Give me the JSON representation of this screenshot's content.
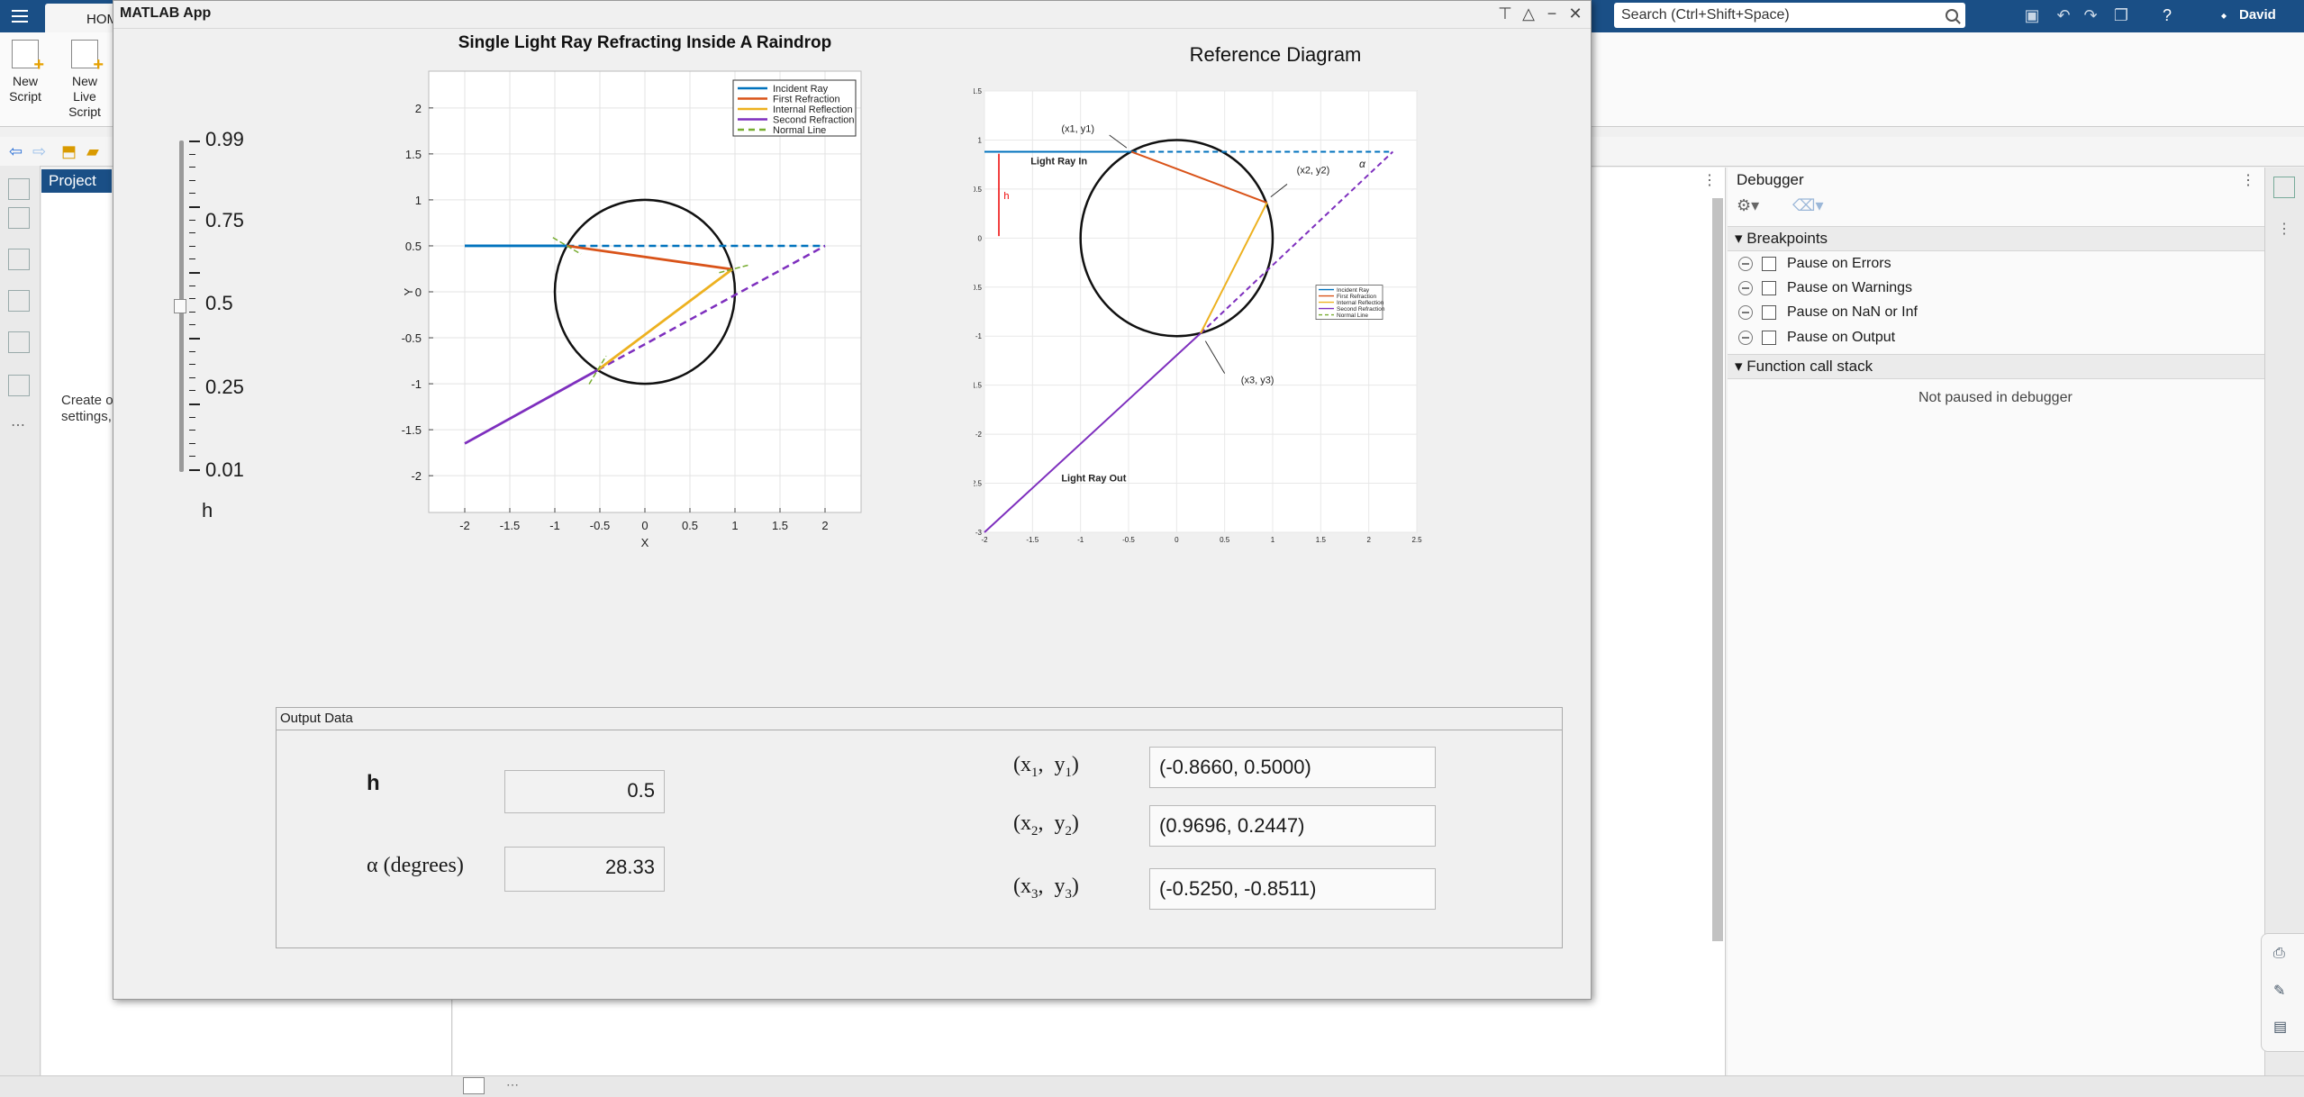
{
  "desktop": {
    "home_tab": "HOME",
    "search_placeholder": "Search (Ctrl+Shift+Space)",
    "user": "David",
    "ribbon": {
      "new_script": "New Script",
      "new_live_script": "New Live Script"
    },
    "project_tab": "Project",
    "project_text_1": "Create o",
    "project_text_2": "settings,",
    "debugger": {
      "title": "Debugger",
      "breakpoints_section": "Breakpoints",
      "breakpoint_options": [
        "Pause on Errors",
        "Pause on Warnings",
        "Pause on NaN or Inf",
        "Pause on Output"
      ],
      "call_stack_section": "Function call stack",
      "status": "Not paused in debugger"
    }
  },
  "app": {
    "window_title": "MATLAB App",
    "slider": {
      "label": "h",
      "tick_labels": [
        "0.99",
        "0.75",
        "0.5",
        "0.25",
        "0.01"
      ],
      "value": 0.5
    },
    "output": {
      "panel_title": "Output Data",
      "h_label": "h",
      "h_value": "0.5",
      "alpha_label": "α  (degrees)",
      "alpha_value": "28.33",
      "p1_label": "(x1,  y1)",
      "p1_value": "(-0.8660, 0.5000)",
      "p2_label": "(x2,  y2)",
      "p2_value": "(0.9696, 0.2447)",
      "p3_label": "(x3,  y3)",
      "p3_value": "(-0.5250, -0.8511)"
    }
  },
  "chart_data": [
    {
      "type": "line",
      "title": "Single Light Ray Refracting Inside A Raindrop",
      "xlabel": "X",
      "ylabel": "Y",
      "xlim": [
        -2.4,
        2.4
      ],
      "ylim": [
        -2.4,
        2.4
      ],
      "xticks": [
        "-2",
        "-1.5",
        "-1",
        "-0.5",
        "0",
        "0.5",
        "1",
        "1.5",
        "2"
      ],
      "yticks": [
        "2",
        "1.5",
        "1",
        "0.5",
        "0",
        "-0.5",
        "-1",
        "-1.5",
        "-2"
      ],
      "grid": true,
      "legend": "top-right",
      "colors": [
        "#0072BD",
        "#D95319",
        "#EDB120",
        "#7E2FBE",
        "#77AC30"
      ],
      "series": [
        {
          "name": "Incident Ray",
          "points": [
            [
              -2,
              0.5
            ],
            [
              -0.866,
              0.5
            ]
          ]
        },
        {
          "name": "First Refraction",
          "points": [
            [
              -0.866,
              0.5
            ],
            [
              0.9696,
              0.2447
            ]
          ]
        },
        {
          "name": "Internal Reflection",
          "points": [
            [
              0.9696,
              0.2447
            ],
            [
              -0.525,
              -0.8511
            ]
          ]
        },
        {
          "name": "Second Refraction",
          "points": [
            [
              -0.525,
              -0.8511
            ],
            [
              -2,
              -1.65
            ]
          ]
        },
        {
          "name": "Normal Line",
          "points": []
        }
      ],
      "circle": {
        "center": [
          0,
          0
        ],
        "radius": 1
      },
      "extensions": {
        "incident_dashed": [
          [
            -0.866,
            0.5
          ],
          [
            2,
            0.5
          ]
        ],
        "refraction_dashed": [
          [
            -0.525,
            -0.8511
          ],
          [
            2,
            0.5
          ]
        ]
      }
    },
    {
      "type": "line",
      "title": "Reference Diagram",
      "xlim": [
        -2,
        2.5
      ],
      "ylim": [
        -3,
        1.5
      ],
      "xticks": [
        "-2",
        "-1.5",
        "-1",
        "-0.5",
        "0",
        "0.5",
        "1",
        "1.5",
        "2",
        "2.5"
      ],
      "yticks": [
        "1.5",
        "1",
        "0.5",
        "0",
        "-0.5",
        "-1",
        "-1.5",
        "-2",
        "-2.5",
        "-3"
      ],
      "grid": true,
      "legend": "right",
      "series": [
        {
          "name": "Incident Ray",
          "points": [
            [
              -2,
              0.88
            ],
            [
              -0.47,
              0.88
            ]
          ]
        },
        {
          "name": "First Refraction",
          "points": [
            [
              -0.47,
              0.88
            ],
            [
              0.94,
              0.36
            ]
          ]
        },
        {
          "name": "Internal Reflection",
          "points": [
            [
              0.94,
              0.36
            ],
            [
              0.25,
              -0.97
            ]
          ]
        },
        {
          "name": "Second Refraction",
          "points": [
            [
              0.25,
              -0.97
            ],
            [
              -2,
              -3
            ]
          ]
        },
        {
          "name": "Normal Line",
          "points": []
        }
      ],
      "circle": {
        "center": [
          0,
          0
        ],
        "radius": 1
      },
      "annotations": [
        "(x1,  y1)",
        "(x2,  y2)",
        "(x3,  y3)",
        "Light Ray In",
        "Light Ray Out",
        "h",
        "α"
      ]
    }
  ]
}
